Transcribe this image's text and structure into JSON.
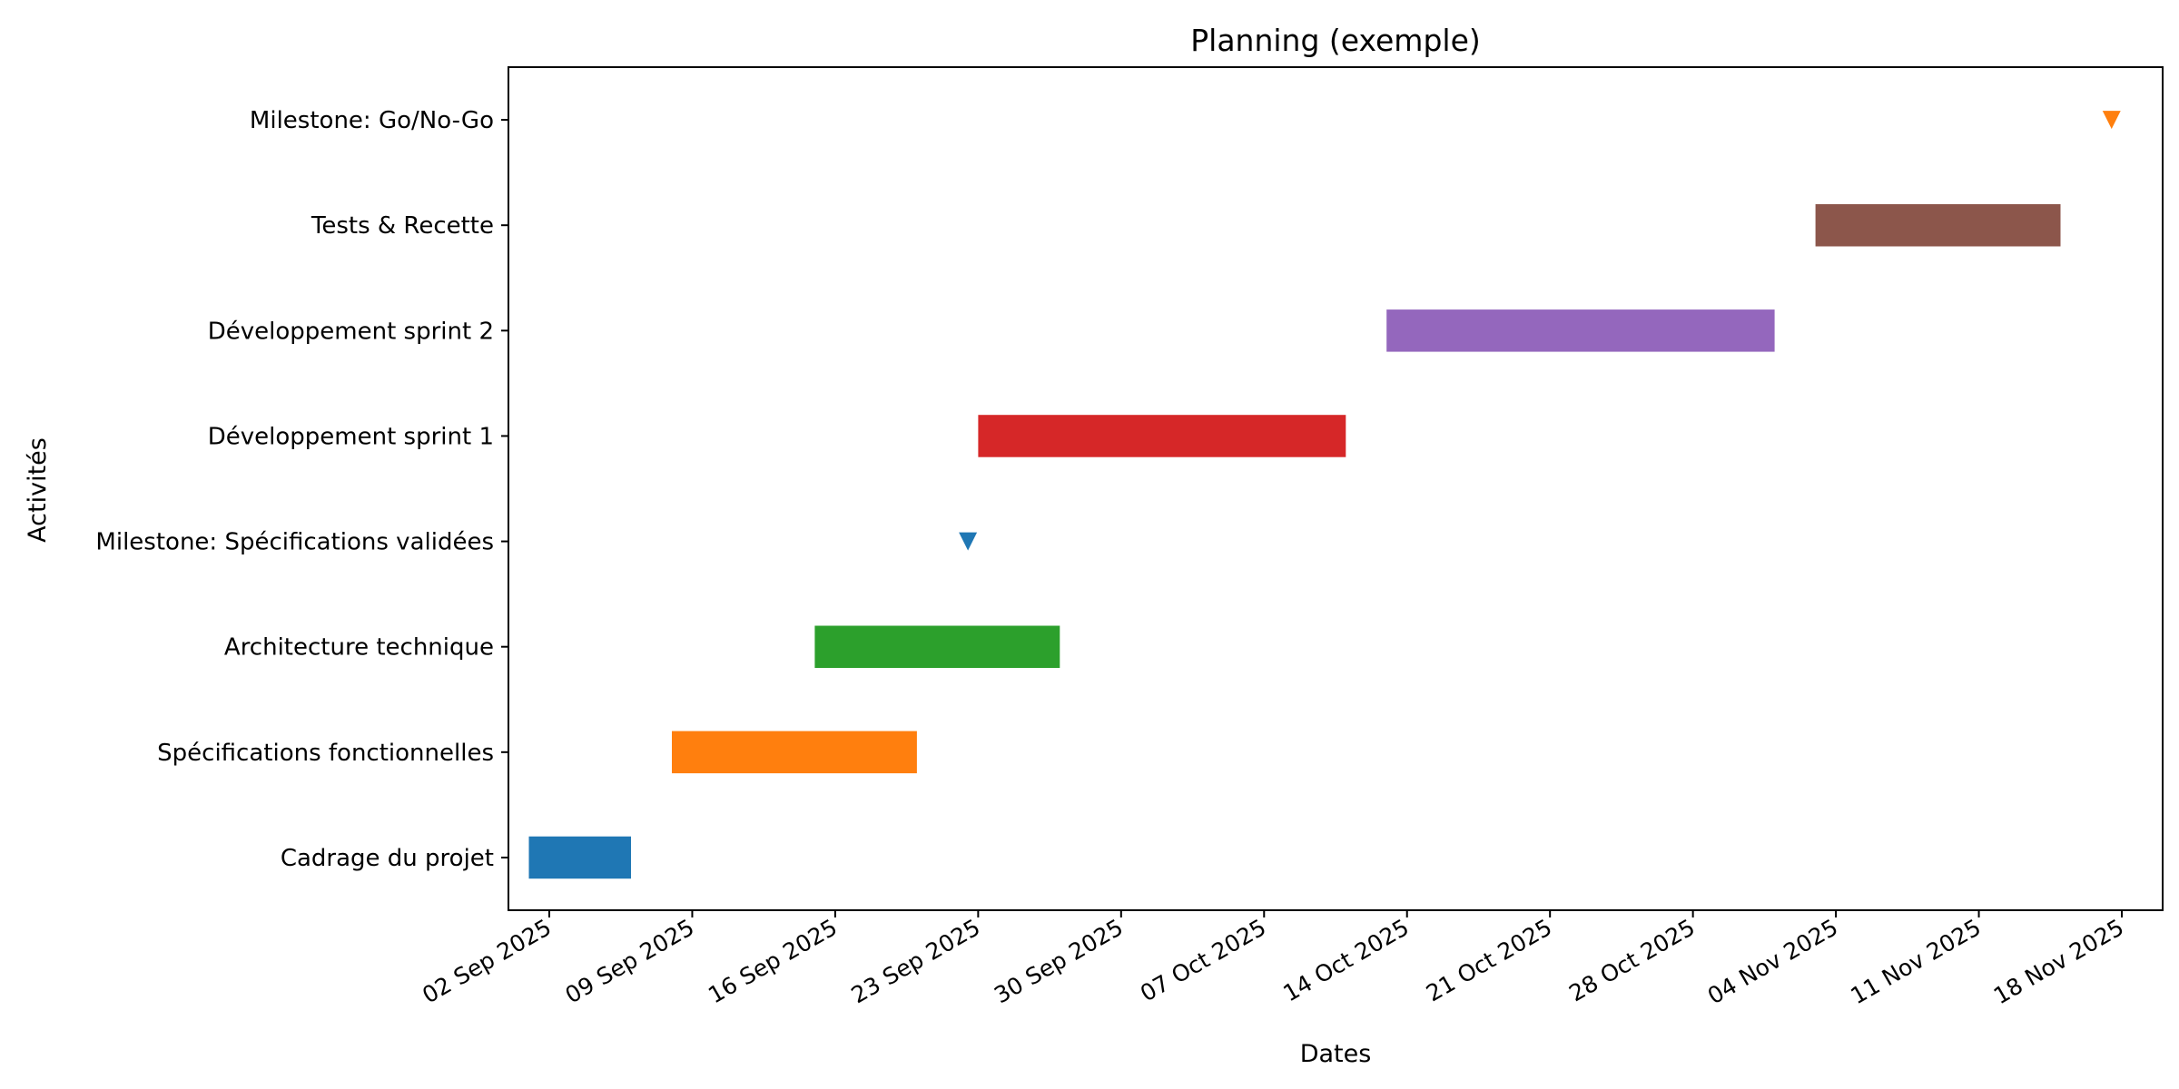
{
  "chart_data": {
    "type": "gantt",
    "title": "Planning (exemple)",
    "xlabel": "Dates",
    "ylabel": "Activités",
    "x_axis": "date",
    "xlim": [
      "2025-08-31",
      "2025-11-20"
    ],
    "x_ticks": [
      "2025-09-02",
      "2025-09-09",
      "2025-09-16",
      "2025-09-23",
      "2025-09-30",
      "2025-10-07",
      "2025-10-14",
      "2025-10-21",
      "2025-10-28",
      "2025-11-04",
      "2025-11-11",
      "2025-11-18"
    ],
    "x_tick_labels": [
      "02 Sep 2025",
      "09 Sep 2025",
      "16 Sep 2025",
      "23 Sep 2025",
      "30 Sep 2025",
      "07 Oct 2025",
      "14 Oct 2025",
      "21 Oct 2025",
      "28 Oct 2025",
      "04 Nov 2025",
      "11 Nov 2025",
      "18 Nov 2025"
    ],
    "grid": false,
    "legend": "none",
    "categories": [
      "Cadrage du projet",
      "Spécifications fonctionnelles",
      "Architecture technique",
      "Milestone: Spécifications validées",
      "Développement sprint 1",
      "Développement sprint 2",
      "Tests & Recette",
      "Milestone: Go/No-Go"
    ],
    "tasks": [
      {
        "label": "Cadrage du projet",
        "kind": "task",
        "start": "2025-09-01",
        "end": "2025-09-05",
        "color": "#1f77b4"
      },
      {
        "label": "Spécifications fonctionnelles",
        "kind": "task",
        "start": "2025-09-08",
        "end": "2025-09-19",
        "color": "#ff7f0e"
      },
      {
        "label": "Architecture technique",
        "kind": "task",
        "start": "2025-09-15",
        "end": "2025-09-26",
        "color": "#2ca02c"
      },
      {
        "label": "Milestone: Spécifications validées",
        "kind": "milestone",
        "date": "2025-09-22",
        "color": "#1f77b4"
      },
      {
        "label": "Développement sprint 1",
        "kind": "task",
        "start": "2025-09-23",
        "end": "2025-10-10",
        "color": "#d62728"
      },
      {
        "label": "Développement sprint 2",
        "kind": "task",
        "start": "2025-10-13",
        "end": "2025-10-31",
        "color": "#9467bd"
      },
      {
        "label": "Tests & Recette",
        "kind": "task",
        "start": "2025-11-03",
        "end": "2025-11-14",
        "color": "#8c564b"
      },
      {
        "label": "Milestone: Go/No-Go",
        "kind": "milestone",
        "date": "2025-11-17",
        "color": "#ff7f0e"
      }
    ]
  }
}
